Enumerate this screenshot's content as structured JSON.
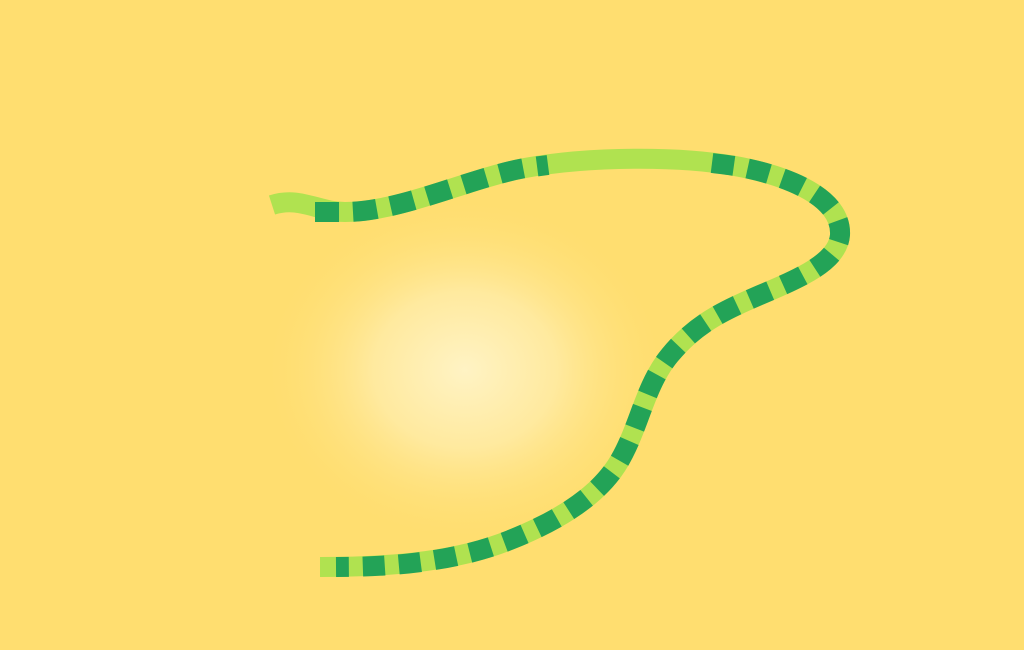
{
  "scene": {
    "background_color": "#FFDE70",
    "glow_color": "#FFF3C4",
    "snake": {
      "base_color": "#B0E250",
      "stripe_color": "#23A357",
      "body_segments": [
        {
          "name": "tail-left-straight",
          "striped": false
        },
        {
          "name": "upper-left-curve",
          "striped": true
        },
        {
          "name": "upper-middle-stretch",
          "striped": false
        },
        {
          "name": "upper-right-bend",
          "striped": true
        },
        {
          "name": "right-s-curve",
          "striped": true
        },
        {
          "name": "lower-body",
          "striped": true
        }
      ]
    }
  }
}
